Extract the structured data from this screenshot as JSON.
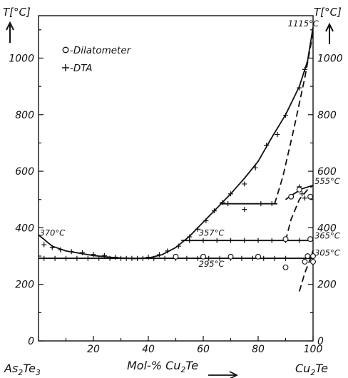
{
  "chart_data": {
    "type": "line",
    "title": "",
    "xlabel_parts": [
      "Mol-% Cu",
      "2",
      "Te"
    ],
    "left_component_parts": [
      "As",
      "2",
      "Te",
      "3"
    ],
    "right_component_parts": [
      "Cu",
      "2",
      "Te"
    ],
    "ylabel_left": "T[°C]",
    "ylabel_right": "T[°C]",
    "xlim": [
      0,
      100
    ],
    "ylim": [
      0,
      1150
    ],
    "x_ticks": [
      20,
      40,
      60,
      80,
      100
    ],
    "y_ticks": [
      0,
      200,
      400,
      600,
      800,
      1000
    ],
    "legend_placement": "top-left",
    "legend": [
      {
        "marker": "circle",
        "label": "-Dilatometer"
      },
      {
        "marker": "plus",
        "label": "-DTA"
      }
    ],
    "annotations": [
      {
        "text": "1115°C",
        "x": 98,
        "y": 1112
      },
      {
        "text": "555°C",
        "x": 101,
        "y": 555
      },
      {
        "text": "370°C",
        "x": 4,
        "y": 372
      },
      {
        "text": "357°C",
        "x": 63,
        "y": 372
      },
      {
        "text": "365°C",
        "x": 101,
        "y": 362
      },
      {
        "text": "295°C",
        "x": 63,
        "y": 262
      },
      {
        "text": "305°C",
        "x": 101,
        "y": 302
      }
    ],
    "lines": [
      {
        "style": "solid",
        "points": [
          [
            0,
            375
          ],
          [
            5,
            335
          ],
          [
            10,
            318
          ],
          [
            20,
            302
          ],
          [
            28,
            294
          ],
          [
            35,
            291
          ],
          [
            40,
            293
          ],
          [
            45,
            305
          ],
          [
            50,
            330
          ],
          [
            55,
            370
          ],
          [
            60,
            420
          ],
          [
            65,
            470
          ],
          [
            70,
            520
          ],
          [
            75,
            575
          ],
          [
            80,
            635
          ],
          [
            85,
            720
          ],
          [
            90,
            800
          ],
          [
            95,
            900
          ],
          [
            98,
            990
          ],
          [
            100,
            1110
          ]
        ]
      },
      {
        "style": "solid",
        "points": [
          [
            0,
            292
          ],
          [
            100,
            292
          ]
        ]
      },
      {
        "style": "solid",
        "points": [
          [
            52,
            355
          ],
          [
            100,
            355
          ]
        ]
      },
      {
        "style": "solid",
        "points": [
          [
            66,
            485
          ],
          [
            87,
            485
          ]
        ]
      },
      {
        "style": "solid",
        "points": [
          [
            90,
            500
          ],
          [
            93,
            520
          ],
          [
            96,
            538
          ],
          [
            100,
            550
          ]
        ]
      },
      {
        "style": "dashed",
        "points": [
          [
            86,
            485
          ],
          [
            89,
            580
          ],
          [
            93,
            750
          ],
          [
            97,
            930
          ],
          [
            100,
            1090
          ]
        ]
      },
      {
        "style": "dashed",
        "points": [
          [
            90,
            355
          ],
          [
            92,
            430
          ],
          [
            95,
            500
          ],
          [
            98,
            535
          ],
          [
            100,
            550
          ]
        ]
      },
      {
        "style": "dashed",
        "points": [
          [
            95,
            175
          ],
          [
            97,
            240
          ],
          [
            99,
            290
          ],
          [
            100,
            320
          ]
        ]
      }
    ],
    "series": [
      {
        "name": "DTA",
        "marker": "plus",
        "points": [
          [
            2,
            340
          ],
          [
            5,
            330
          ],
          [
            8,
            322
          ],
          [
            12,
            316
          ],
          [
            16,
            312
          ],
          [
            20,
            306
          ],
          [
            24,
            302
          ],
          [
            28,
            296
          ],
          [
            32,
            292
          ],
          [
            36,
            292
          ],
          [
            40,
            296
          ],
          [
            44,
            305
          ],
          [
            47,
            318
          ],
          [
            51,
            335
          ],
          [
            55,
            368
          ],
          [
            58,
            395
          ],
          [
            61,
            425
          ],
          [
            64,
            460
          ],
          [
            67,
            490
          ],
          [
            70,
            520
          ],
          [
            75,
            555
          ],
          [
            79,
            612
          ],
          [
            83,
            692
          ],
          [
            87,
            730
          ],
          [
            90,
            798
          ],
          [
            95,
            895
          ],
          [
            97,
            960
          ],
          [
            2,
            292
          ],
          [
            6,
            292
          ],
          [
            10,
            292
          ],
          [
            14,
            292
          ],
          [
            18,
            292
          ],
          [
            22,
            292
          ],
          [
            26,
            292
          ],
          [
            30,
            292
          ],
          [
            34,
            292
          ],
          [
            38,
            292
          ],
          [
            42,
            292
          ],
          [
            46,
            292
          ],
          [
            50,
            292
          ],
          [
            54,
            292
          ],
          [
            58,
            292
          ],
          [
            62,
            292
          ],
          [
            66,
            292
          ],
          [
            70,
            292
          ],
          [
            74,
            292
          ],
          [
            78,
            292
          ],
          [
            82,
            292
          ],
          [
            86,
            292
          ],
          [
            90,
            292
          ],
          [
            55,
            355
          ],
          [
            60,
            355
          ],
          [
            65,
            355
          ],
          [
            70,
            355
          ],
          [
            75,
            355
          ],
          [
            80,
            355
          ],
          [
            85,
            355
          ],
          [
            90,
            355
          ],
          [
            95,
            355
          ],
          [
            69,
            485
          ],
          [
            75,
            465
          ],
          [
            81,
            485
          ],
          [
            85,
            485
          ],
          [
            95,
            545
          ],
          [
            96,
            520
          ],
          [
            97,
            505
          ]
        ]
      },
      {
        "name": "Dilatometer",
        "marker": "circle",
        "points": [
          [
            50,
            298
          ],
          [
            60,
            298
          ],
          [
            70,
            298
          ],
          [
            80,
            298
          ],
          [
            90,
            260
          ],
          [
            90,
            360
          ],
          [
            92,
            510
          ],
          [
            95,
            535
          ],
          [
            97,
            280
          ],
          [
            98,
            300
          ],
          [
            99,
            510
          ],
          [
            99,
            360
          ],
          [
            100,
            300
          ],
          [
            100,
            280
          ]
        ]
      }
    ]
  }
}
